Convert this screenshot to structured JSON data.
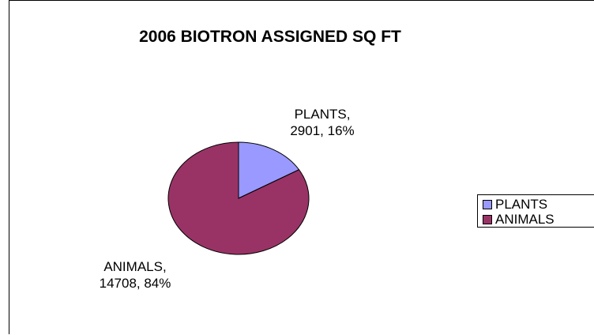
{
  "chart_data": {
    "type": "pie",
    "title": "2006 BIOTRON ASSIGNED SQ FT",
    "slices": [
      {
        "name": "PLANTS",
        "value": 2901,
        "percent": 16,
        "color": "#9999ff",
        "label_line1": "PLANTS,",
        "label_line2": "2901, 16%"
      },
      {
        "name": "ANIMALS",
        "value": 14708,
        "percent": 84,
        "color": "#993366",
        "label_line1": "ANIMALS,",
        "label_line2": "14708, 84%"
      }
    ],
    "legend": {
      "placement": "right",
      "items": [
        "PLANTS",
        "ANIMALS"
      ]
    }
  }
}
